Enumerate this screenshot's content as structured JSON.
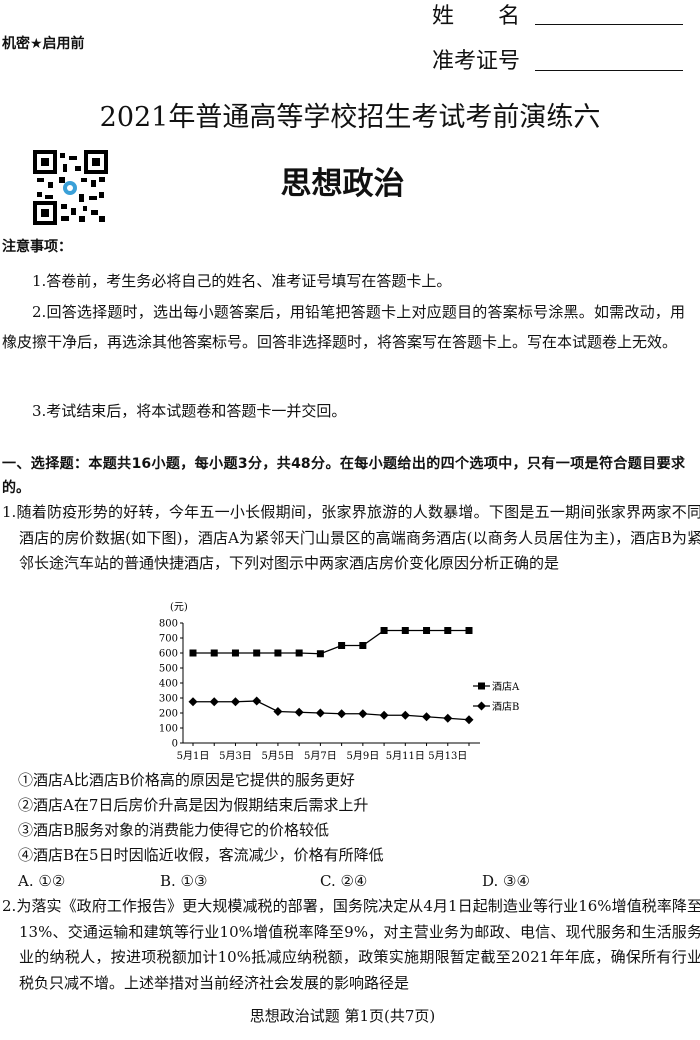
{
  "header": {
    "confidential": "机密★启用前",
    "name_label": "姓　　名",
    "id_label": "准考证号",
    "title": "2021年普通高等学校招生考试考前演练六",
    "subject": "思想政治"
  },
  "notes": {
    "heading": "注意事项：",
    "items": [
      "1.答卷前，考生务必将自己的姓名、准考证号填写在答题卡上。",
      "2.回答选择题时，选出每小题答案后，用铅笔把答题卡上对应题目的答案标号涂黑。如需改动，用橡皮擦干净后，再选涂其他答案标号。回答非选择题时，将答案写在答题卡上。写在本试题卷上无效。",
      "3.考试结束后，将本试题卷和答题卡一并交回。"
    ]
  },
  "section": {
    "heading": "一、选择题：本题共16小题，每小题3分，共48分。在每小题给出的四个选项中，只有一项是符合题目要求的。"
  },
  "questions": [
    {
      "number": "1.",
      "stem": "随着防疫形势的好转，今年五一小长假期间，张家界旅游的人数暴增。下图是五一期间张家界两家不同酒店的房价数据(如下图)，酒店A为紧邻天门山景区的高端商务酒店(以商务人员居住为主)，酒店B为紧邻长途汽车站的普通快捷酒店，下列对图示中两家酒店房价变化原因分析正确的是",
      "statements": [
        "①酒店A比酒店B价格高的原因是它提供的服务更好",
        "②酒店A在7日后房价升高是因为假期结束后需求上升",
        "③酒店B服务对象的消费能力使得它的价格较低",
        "④酒店B在5日时因临近收假，客流减少，价格有所降低"
      ],
      "options": [
        "A. ①②",
        "B. ①③",
        "C. ②④",
        "D. ③④"
      ]
    },
    {
      "number": "2.",
      "stem": "为落实《政府工作报告》更大规模减税的部署，国务院决定从4月1日起制造业等行业16%增值税率降至13%、交通运输和建筑等行业10%增值税率降至9%，对主营业务为邮政、电信、现代服务和生活服务业的纳税人，按进项税额加计10%抵减应纳税额，政策实施期限暂定截至2021年年底，确保所有行业税负只减不增。上述举措对当前经济社会发展的影响路径是"
    }
  ],
  "chart_data": {
    "type": "line",
    "y_label": "(元)",
    "categories": [
      "5月1日",
      null,
      "5月3日",
      null,
      "5月5日",
      null,
      "5月7日",
      null,
      "5月9日",
      null,
      "5月11日",
      null,
      "5月13日",
      null
    ],
    "series": [
      {
        "name": "酒店A",
        "color": "#000000",
        "marker": "square",
        "values": [
          600,
          600,
          600,
          600,
          600,
          600,
          595,
          650,
          650,
          750,
          750,
          750,
          750,
          750
        ]
      },
      {
        "name": "酒店B",
        "color": "#000000",
        "marker": "diamond",
        "values": [
          275,
          275,
          275,
          280,
          210,
          205,
          200,
          195,
          195,
          185,
          185,
          175,
          165,
          155
        ]
      }
    ],
    "ylim": [
      0,
      800
    ],
    "yticks": [
      0,
      100,
      200,
      300,
      400,
      500,
      600,
      700,
      800
    ],
    "grid": false,
    "legend": "right"
  },
  "footer": "思想政治试题 第1页(共7页)"
}
